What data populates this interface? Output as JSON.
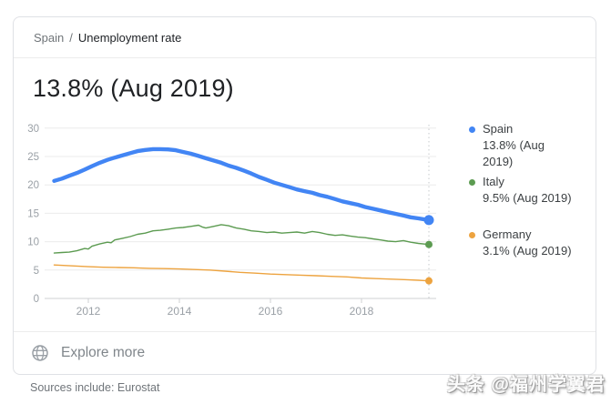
{
  "breadcrumb": {
    "location": "Spain",
    "separator": "/",
    "topic": "Unemployment rate"
  },
  "headline": "13.8% (Aug 2019)",
  "explore_label": "Explore more",
  "sources_note": "Sources include: Eurostat",
  "watermark": "头条 @福州学翼君",
  "legend": [
    {
      "name": "Spain",
      "value": "13.8% (Aug\n2019)",
      "color": "#4285f4"
    },
    {
      "name": "Italy",
      "value": "9.5% (Aug 2019)",
      "color": "#5c9b51"
    },
    {
      "name": "Germany",
      "value": "3.1% (Aug 2019)",
      "color": "#eda33f"
    }
  ],
  "chart_data": {
    "type": "line",
    "title": "Unemployment rate",
    "unit": "%",
    "grid": true,
    "legend_position": "right",
    "xlim": [
      2011.0,
      2019.7
    ],
    "ylim": [
      0,
      30
    ],
    "x_ticks": [
      2012,
      2014,
      2016,
      2018
    ],
    "y_ticks": [
      0,
      5,
      10,
      15,
      20,
      25,
      30
    ],
    "series": [
      {
        "name": "Spain",
        "color": "#4285f4",
        "line_width": 4.4,
        "end_dot_radius": 5.5,
        "points": [
          [
            2011.25,
            20.7
          ],
          [
            2011.42,
            21.1
          ],
          [
            2011.58,
            21.6
          ],
          [
            2011.75,
            22.1
          ],
          [
            2011.92,
            22.7
          ],
          [
            2012.08,
            23.3
          ],
          [
            2012.25,
            23.9
          ],
          [
            2012.42,
            24.4
          ],
          [
            2012.58,
            24.8
          ],
          [
            2012.75,
            25.2
          ],
          [
            2012.92,
            25.6
          ],
          [
            2013.08,
            25.95
          ],
          [
            2013.25,
            26.15
          ],
          [
            2013.42,
            26.3
          ],
          [
            2013.58,
            26.3
          ],
          [
            2013.75,
            26.25
          ],
          [
            2013.92,
            26.1
          ],
          [
            2014.08,
            25.8
          ],
          [
            2014.25,
            25.5
          ],
          [
            2014.42,
            25.1
          ],
          [
            2014.58,
            24.7
          ],
          [
            2014.75,
            24.3
          ],
          [
            2014.92,
            23.9
          ],
          [
            2015.08,
            23.4
          ],
          [
            2015.25,
            23.0
          ],
          [
            2015.42,
            22.5
          ],
          [
            2015.58,
            22.0
          ],
          [
            2015.75,
            21.4
          ],
          [
            2015.92,
            20.9
          ],
          [
            2016.08,
            20.4
          ],
          [
            2016.25,
            20.0
          ],
          [
            2016.42,
            19.6
          ],
          [
            2016.58,
            19.2
          ],
          [
            2016.75,
            18.9
          ],
          [
            2016.92,
            18.6
          ],
          [
            2017.08,
            18.2
          ],
          [
            2017.25,
            17.9
          ],
          [
            2017.42,
            17.5
          ],
          [
            2017.58,
            17.1
          ],
          [
            2017.75,
            16.8
          ],
          [
            2017.92,
            16.5
          ],
          [
            2018.08,
            16.1
          ],
          [
            2018.25,
            15.8
          ],
          [
            2018.42,
            15.5
          ],
          [
            2018.58,
            15.2
          ],
          [
            2018.75,
            14.9
          ],
          [
            2018.92,
            14.6
          ],
          [
            2019.08,
            14.3
          ],
          [
            2019.25,
            14.1
          ],
          [
            2019.48,
            13.8
          ]
        ]
      },
      {
        "name": "Italy",
        "color": "#5c9b51",
        "line_width": 1.4,
        "end_dot_radius": 4,
        "points": [
          [
            2011.25,
            8.0
          ],
          [
            2011.42,
            8.1
          ],
          [
            2011.58,
            8.15
          ],
          [
            2011.75,
            8.4
          ],
          [
            2011.92,
            8.8
          ],
          [
            2012.0,
            8.7
          ],
          [
            2012.08,
            9.2
          ],
          [
            2012.25,
            9.6
          ],
          [
            2012.42,
            9.9
          ],
          [
            2012.5,
            9.8
          ],
          [
            2012.58,
            10.3
          ],
          [
            2012.75,
            10.6
          ],
          [
            2012.92,
            10.9
          ],
          [
            2013.08,
            11.3
          ],
          [
            2013.25,
            11.5
          ],
          [
            2013.42,
            11.9
          ],
          [
            2013.58,
            12.0
          ],
          [
            2013.75,
            12.2
          ],
          [
            2013.92,
            12.4
          ],
          [
            2014.08,
            12.5
          ],
          [
            2014.25,
            12.7
          ],
          [
            2014.42,
            12.9
          ],
          [
            2014.5,
            12.6
          ],
          [
            2014.58,
            12.4
          ],
          [
            2014.75,
            12.7
          ],
          [
            2014.92,
            13.0
          ],
          [
            2015.08,
            12.8
          ],
          [
            2015.25,
            12.4
          ],
          [
            2015.42,
            12.2
          ],
          [
            2015.58,
            11.9
          ],
          [
            2015.75,
            11.8
          ],
          [
            2015.92,
            11.6
          ],
          [
            2016.08,
            11.7
          ],
          [
            2016.25,
            11.5
          ],
          [
            2016.42,
            11.6
          ],
          [
            2016.58,
            11.7
          ],
          [
            2016.75,
            11.5
          ],
          [
            2016.92,
            11.8
          ],
          [
            2017.08,
            11.6
          ],
          [
            2017.25,
            11.3
          ],
          [
            2017.42,
            11.1
          ],
          [
            2017.58,
            11.2
          ],
          [
            2017.75,
            11.0
          ],
          [
            2017.92,
            10.8
          ],
          [
            2018.08,
            10.7
          ],
          [
            2018.25,
            10.5
          ],
          [
            2018.42,
            10.3
          ],
          [
            2018.58,
            10.1
          ],
          [
            2018.75,
            10.0
          ],
          [
            2018.92,
            10.2
          ],
          [
            2019.08,
            9.9
          ],
          [
            2019.25,
            9.7
          ],
          [
            2019.48,
            9.5
          ]
        ]
      },
      {
        "name": "Germany",
        "color": "#eda33f",
        "line_width": 1.4,
        "end_dot_radius": 4,
        "points": [
          [
            2011.25,
            5.9
          ],
          [
            2011.5,
            5.8
          ],
          [
            2011.75,
            5.7
          ],
          [
            2012.0,
            5.6
          ],
          [
            2012.33,
            5.5
          ],
          [
            2012.67,
            5.45
          ],
          [
            2013.0,
            5.4
          ],
          [
            2013.33,
            5.3
          ],
          [
            2013.67,
            5.25
          ],
          [
            2014.0,
            5.2
          ],
          [
            2014.33,
            5.1
          ],
          [
            2014.67,
            5.0
          ],
          [
            2015.0,
            4.8
          ],
          [
            2015.33,
            4.6
          ],
          [
            2015.67,
            4.45
          ],
          [
            2016.0,
            4.3
          ],
          [
            2016.33,
            4.2
          ],
          [
            2016.67,
            4.1
          ],
          [
            2017.0,
            4.0
          ],
          [
            2017.33,
            3.9
          ],
          [
            2017.67,
            3.8
          ],
          [
            2018.0,
            3.6
          ],
          [
            2018.33,
            3.5
          ],
          [
            2018.67,
            3.4
          ],
          [
            2019.0,
            3.3
          ],
          [
            2019.25,
            3.2
          ],
          [
            2019.48,
            3.1
          ]
        ]
      }
    ]
  }
}
